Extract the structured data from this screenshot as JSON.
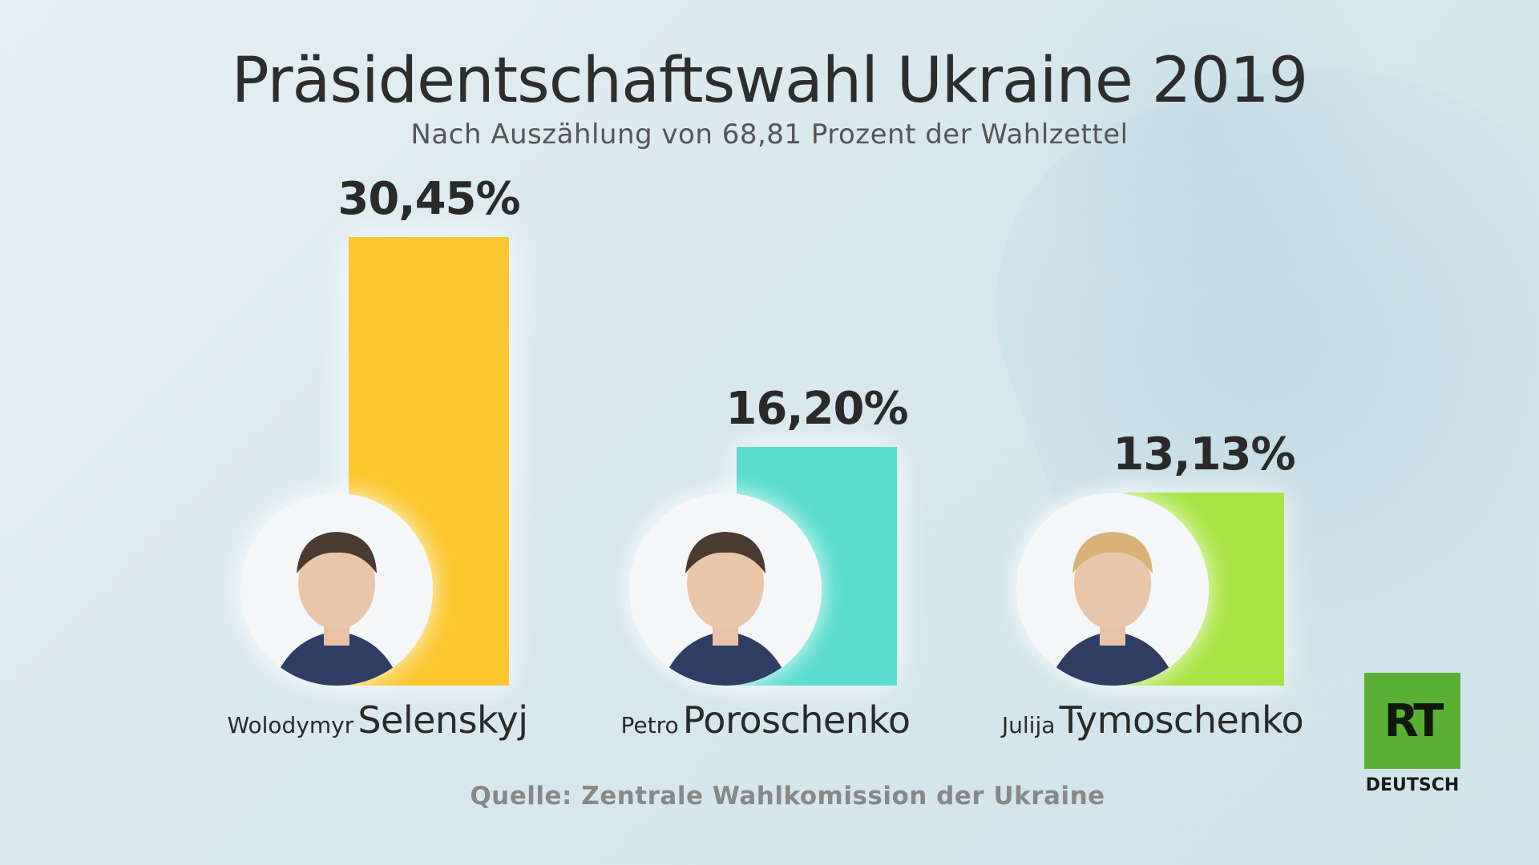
{
  "title": "Präsidentschaftswahl Ukraine 2019",
  "subtitle": "Nach Auszählung von 68,81 Prozent der Wahlzettel",
  "source": "Quelle: Zentrale Wahlkomission der Ukraine",
  "logo": {
    "mark": "RT",
    "sub": "DEUTSCH",
    "color": "#5ab034"
  },
  "chart_data": {
    "type": "bar",
    "title": "Präsidentschaftswahl Ukraine 2019",
    "subtitle": "Nach Auszählung von 68,81 Prozent der Wahlzettel",
    "ylim": [
      0,
      30.45
    ],
    "grid": false,
    "categories": [
      "Wolodymyr Selenskyj",
      "Petro Poroschenko",
      "Julija Tymoschenko"
    ],
    "values": [
      30.45,
      16.2,
      13.13
    ],
    "value_labels": [
      "30,45%",
      "16,20%",
      "13,13%"
    ],
    "first_names": [
      "Wolodymyr",
      "Petro",
      "Julija"
    ],
    "last_names": [
      "Selenskyj",
      "Poroschenko",
      "Tymoschenko"
    ],
    "colors": [
      "#fac72e",
      "#5adccf",
      "#a8e443"
    ]
  }
}
